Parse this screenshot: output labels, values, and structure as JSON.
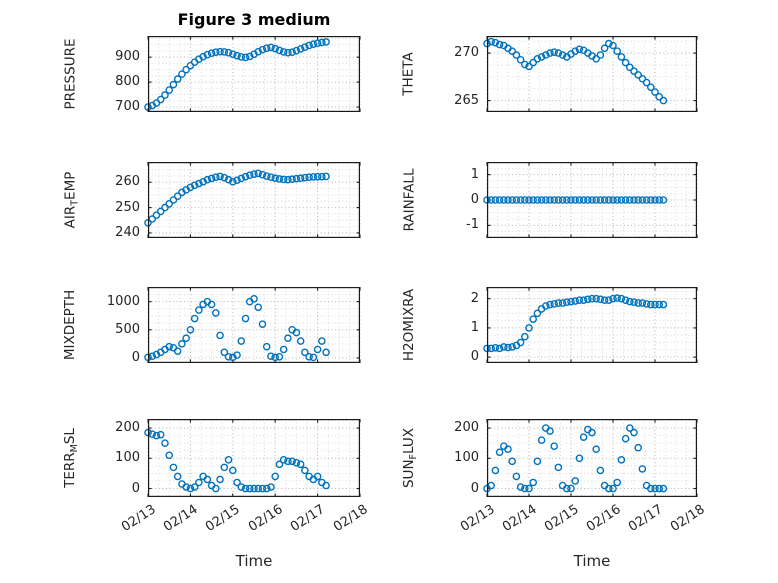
{
  "title": "Figure 3 medium",
  "colors": {
    "marker": "#0072BD",
    "axis": "#1a1a1a",
    "grid_major": "#b3b3b3",
    "grid_minor": "#d9d9d9",
    "text": "#252525"
  },
  "chart_data": {
    "type": "scatter",
    "marker": "open-circle",
    "x_label": "Time",
    "x_lim_days": [
      0,
      5
    ],
    "x_tick_labels": [
      "02/13",
      "02/14",
      "02/15",
      "02/16",
      "02/17",
      "02/18"
    ],
    "x_tick_positions_days": [
      0,
      1,
      2,
      3,
      4,
      5
    ],
    "x_values_days": [
      0,
      0.1,
      0.2,
      0.3,
      0.4,
      0.5,
      0.6,
      0.7,
      0.8,
      0.9,
      1.0,
      1.1,
      1.2,
      1.3,
      1.4,
      1.5,
      1.6,
      1.7,
      1.8,
      1.9,
      2.0,
      2.1,
      2.2,
      2.3,
      2.4,
      2.5,
      2.6,
      2.7,
      2.8,
      2.9,
      3.0,
      3.1,
      3.2,
      3.3,
      3.4,
      3.5,
      3.6,
      3.7,
      3.8,
      3.9,
      4.0,
      4.1,
      4.2
    ],
    "subplots": [
      {
        "key": "pressure",
        "ylabel": "PRESSURE",
        "ylabel_parts": [
          {
            "text": "PRESSURE"
          }
        ],
        "yticks": [
          700,
          800,
          900
        ],
        "ylim": [
          680,
          985
        ],
        "show_x_tick_labels": false,
        "values": [
          700,
          706,
          716,
          730,
          748,
          768,
          790,
          812,
          832,
          850,
          866,
          880,
          892,
          902,
          910,
          916,
          920,
          922,
          921,
          918,
          912,
          906,
          901,
          899,
          903,
          912,
          922,
          930,
          936,
          939,
          934,
          927,
          921,
          918,
          920,
          926,
          933,
          940,
          947,
          952,
          956,
          959,
          961
        ]
      },
      {
        "key": "theta",
        "ylabel": "THETA",
        "ylabel_parts": [
          {
            "text": "THETA"
          }
        ],
        "yticks": [
          265,
          270
        ],
        "ylim": [
          263.8,
          271.8
        ],
        "show_x_tick_labels": false,
        "values": [
          271.0,
          271.2,
          271.1,
          270.9,
          270.8,
          270.5,
          270.2,
          269.8,
          269.3,
          268.8,
          268.6,
          269.0,
          269.4,
          269.6,
          269.8,
          270.0,
          270.1,
          270.0,
          269.8,
          269.6,
          269.9,
          270.2,
          270.4,
          270.3,
          270.0,
          269.7,
          269.4,
          269.8,
          270.5,
          271.0,
          270.8,
          270.2,
          269.6,
          269.0,
          268.5,
          268.1,
          267.7,
          267.3,
          266.9,
          266.4,
          265.9,
          265.4,
          265.0
        ]
      },
      {
        "key": "air_temp",
        "ylabel": "AIR_TEMP",
        "ylabel_parts": [
          {
            "text": "AIR"
          },
          {
            "text": "T",
            "sub": true
          },
          {
            "text": "EMP"
          }
        ],
        "yticks": [
          240,
          250,
          260
        ],
        "ylim": [
          238,
          268
        ],
        "show_x_tick_labels": false,
        "values": [
          244.0,
          245.5,
          247.0,
          248.5,
          250.0,
          251.5,
          253.0,
          254.5,
          256.0,
          257.0,
          258.0,
          258.8,
          259.5,
          260.2,
          261.0,
          261.5,
          262.0,
          262.3,
          261.8,
          261.0,
          260.2,
          260.8,
          261.5,
          262.2,
          262.8,
          263.2,
          263.5,
          263.0,
          262.4,
          262.0,
          261.6,
          261.3,
          261.1,
          261.0,
          261.2,
          261.4,
          261.6,
          261.8,
          262.0,
          262.1,
          262.2,
          262.2,
          262.3
        ]
      },
      {
        "key": "rainfall",
        "ylabel": "RAINFALL",
        "ylabel_parts": [
          {
            "text": "RAINFALL"
          }
        ],
        "yticks": [
          -1,
          0,
          1
        ],
        "ylim": [
          -1.5,
          1.5
        ],
        "show_x_tick_labels": false,
        "values": [
          0,
          0,
          0,
          0,
          0,
          0,
          0,
          0,
          0,
          0,
          0,
          0,
          0,
          0,
          0,
          0,
          0,
          0,
          0,
          0,
          0,
          0,
          0,
          0,
          0,
          0,
          0,
          0,
          0,
          0,
          0,
          0,
          0,
          0,
          0,
          0,
          0,
          0,
          0,
          0,
          0,
          0,
          0
        ]
      },
      {
        "key": "mixdepth",
        "ylabel": "MIXDEPTH",
        "ylabel_parts": [
          {
            "text": "MIXDEPTH"
          }
        ],
        "yticks": [
          0,
          500,
          1000
        ],
        "ylim": [
          -90,
          1260
        ],
        "show_x_tick_labels": false,
        "values": [
          10,
          30,
          60,
          100,
          150,
          200,
          180,
          120,
          250,
          350,
          500,
          700,
          850,
          950,
          1000,
          950,
          800,
          400,
          100,
          20,
          10,
          50,
          300,
          700,
          1000,
          1050,
          900,
          600,
          200,
          30,
          10,
          20,
          150,
          350,
          500,
          450,
          300,
          100,
          20,
          10,
          150,
          300,
          100
        ]
      },
      {
        "key": "h2omixra",
        "ylabel": "H2OMIXRA",
        "ylabel_parts": [
          {
            "text": "H2OMIXRA"
          }
        ],
        "yticks": [
          0,
          1,
          2
        ],
        "ylim": [
          -0.2,
          2.4
        ],
        "show_x_tick_labels": false,
        "values": [
          0.3,
          0.3,
          0.32,
          0.3,
          0.35,
          0.33,
          0.35,
          0.4,
          0.5,
          0.7,
          1.0,
          1.3,
          1.5,
          1.65,
          1.75,
          1.8,
          1.82,
          1.85,
          1.85,
          1.88,
          1.9,
          1.92,
          1.95,
          1.95,
          1.98,
          2.0,
          2.0,
          1.98,
          1.95,
          1.95,
          2.0,
          2.02,
          2.0,
          1.95,
          1.9,
          1.88,
          1.85,
          1.85,
          1.82,
          1.8,
          1.8,
          1.8,
          1.8
        ]
      },
      {
        "key": "terr_msl",
        "ylabel": "TERR_MSL",
        "ylabel_parts": [
          {
            "text": "TERR"
          },
          {
            "text": "M",
            "sub": true
          },
          {
            "text": "SL"
          }
        ],
        "yticks": [
          0,
          100,
          200
        ],
        "ylim": [
          -28,
          230
        ],
        "show_x_tick_labels": true,
        "values": [
          185,
          180,
          175,
          178,
          150,
          110,
          70,
          40,
          15,
          5,
          0,
          5,
          20,
          40,
          30,
          10,
          0,
          30,
          70,
          95,
          60,
          20,
          5,
          0,
          0,
          0,
          0,
          0,
          0,
          5,
          40,
          80,
          95,
          90,
          90,
          85,
          80,
          60,
          40,
          30,
          40,
          20,
          10
        ]
      },
      {
        "key": "sun_flux",
        "ylabel": "SUN_FLUX",
        "ylabel_parts": [
          {
            "text": "SUN"
          },
          {
            "text": "F",
            "sub": true
          },
          {
            "text": "LUX"
          }
        ],
        "yticks": [
          0,
          100,
          200
        ],
        "ylim": [
          -28,
          230
        ],
        "show_x_tick_labels": true,
        "values": [
          0,
          10,
          60,
          120,
          140,
          130,
          90,
          40,
          5,
          0,
          0,
          20,
          90,
          160,
          200,
          190,
          140,
          70,
          10,
          0,
          0,
          25,
          100,
          170,
          195,
          185,
          130,
          60,
          10,
          0,
          0,
          20,
          95,
          165,
          200,
          185,
          135,
          65,
          10,
          0,
          0,
          0,
          0
        ]
      }
    ]
  }
}
